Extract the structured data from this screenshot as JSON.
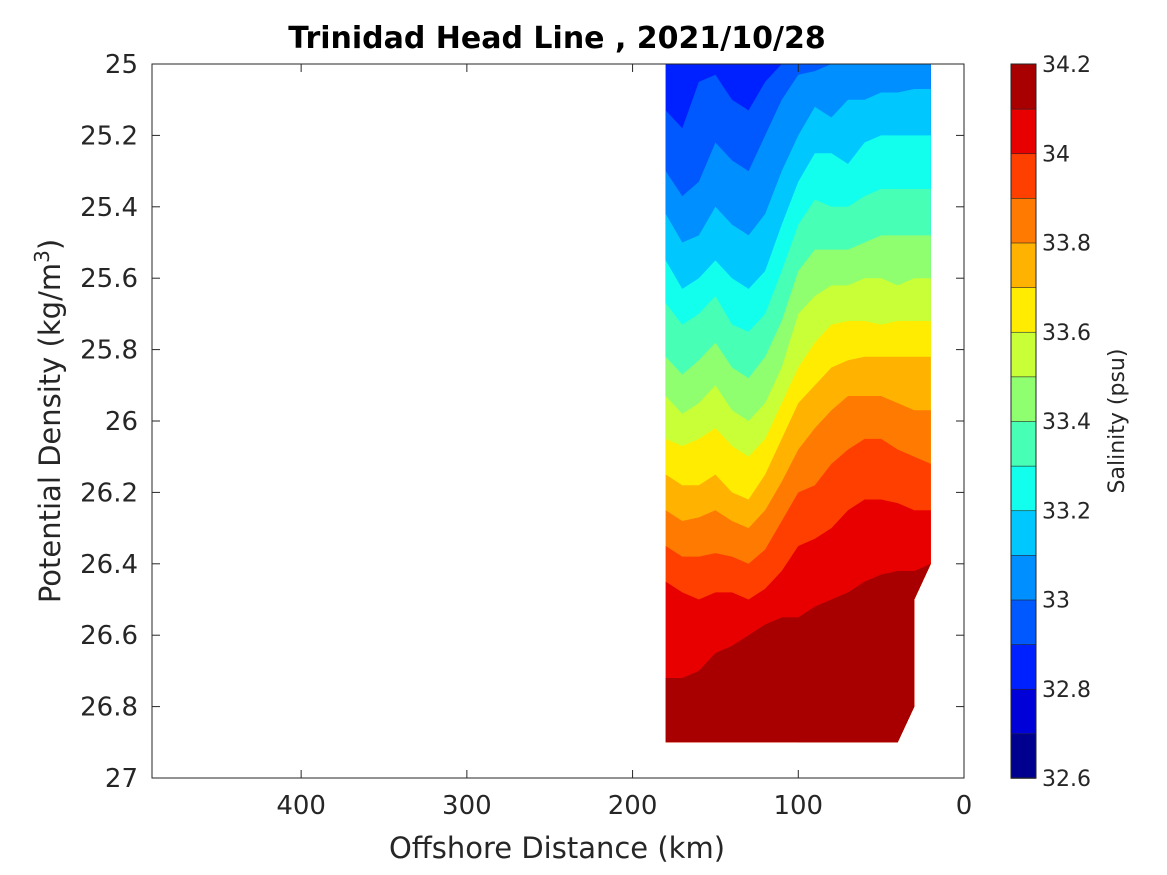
{
  "chart_data": {
    "type": "heatmap",
    "subtype": "filled-contour",
    "title": "Trinidad Head Line , 2021/10/28",
    "xlabel": "Offshore Distance (km)",
    "ylabel": {
      "base": "Potential Density (kg/m",
      "sup": "3",
      "close": ")"
    },
    "xlim": [
      490,
      0
    ],
    "ylim": [
      25,
      27
    ],
    "x_reversed": true,
    "y_reversed": true,
    "xticks": [
      400,
      300,
      200,
      100,
      0
    ],
    "yticks": [
      25,
      25.2,
      25.4,
      25.6,
      25.8,
      26,
      26.2,
      26.4,
      26.6,
      26.8,
      27
    ],
    "grid": false,
    "colorbar": {
      "label": "Salinity (psu)",
      "range": [
        32.6,
        34.2
      ],
      "ticks": [
        "34.2",
        "34",
        "33.8",
        "33.6",
        "33.4",
        "33.2",
        "33",
        "32.8",
        "32.6"
      ],
      "levels": [
        32.6,
        32.7,
        32.8,
        32.9,
        33.0,
        33.1,
        33.2,
        33.3,
        33.4,
        33.5,
        33.6,
        33.7,
        33.8,
        33.9,
        34.0,
        34.1,
        34.2
      ],
      "colors": [
        "#00008f",
        "#0000d8",
        "#0021ff",
        "#0058ff",
        "#008fff",
        "#00c8ff",
        "#12ffed",
        "#48ffb6",
        "#8fff6f",
        "#c8ff37",
        "#ffec00",
        "#ffb300",
        "#ff7a00",
        "#ff3f00",
        "#e80000",
        "#a80000"
      ]
    },
    "x_stations_km": [
      180,
      170,
      160,
      150,
      140,
      130,
      120,
      110,
      100,
      90,
      80,
      70,
      60,
      50,
      40,
      30,
      20
    ],
    "contours": [
      {
        "level": 32.8,
        "x": [
          180,
          170,
          160,
          150,
          140,
          130,
          120,
          110
        ],
        "y": [
          25.0,
          25.0,
          25.0,
          25.0,
          25.0,
          25.0,
          25.0,
          25.0
        ]
      },
      {
        "level": 32.9,
        "x": [
          180,
          170,
          160,
          150,
          140,
          130,
          120,
          110,
          100
        ],
        "y": [
          25.13,
          25.18,
          25.05,
          25.03,
          25.1,
          25.13,
          25.05,
          25.0,
          25.0
        ]
      },
      {
        "level": 33.0,
        "x": [
          180,
          170,
          160,
          150,
          140,
          130,
          120,
          110,
          100,
          90,
          80,
          70,
          60,
          50,
          40,
          30,
          20
        ],
        "y": [
          25.3,
          25.37,
          25.33,
          25.22,
          25.27,
          25.3,
          25.2,
          25.1,
          25.03,
          25.02,
          25.0,
          25.0,
          25.0,
          25.0,
          25.0,
          25.0,
          25.0
        ]
      },
      {
        "level": 33.1,
        "x": [
          180,
          170,
          160,
          150,
          140,
          130,
          120,
          110,
          100,
          90,
          80,
          70,
          60,
          50,
          40,
          30,
          20
        ],
        "y": [
          25.42,
          25.5,
          25.48,
          25.4,
          25.45,
          25.48,
          25.42,
          25.3,
          25.2,
          25.12,
          25.15,
          25.1,
          25.1,
          25.08,
          25.08,
          25.07,
          25.07
        ]
      },
      {
        "level": 33.2,
        "x": [
          180,
          170,
          160,
          150,
          140,
          130,
          120,
          110,
          100,
          90,
          80,
          70,
          60,
          50,
          40,
          30,
          20
        ],
        "y": [
          25.55,
          25.63,
          25.6,
          25.55,
          25.6,
          25.63,
          25.58,
          25.45,
          25.33,
          25.25,
          25.25,
          25.28,
          25.22,
          25.2,
          25.2,
          25.2,
          25.2
        ]
      },
      {
        "level": 33.3,
        "x": [
          180,
          170,
          160,
          150,
          140,
          130,
          120,
          110,
          100,
          90,
          80,
          70,
          60,
          50,
          40,
          30,
          20
        ],
        "y": [
          25.67,
          25.73,
          25.7,
          25.65,
          25.73,
          25.75,
          25.7,
          25.58,
          25.45,
          25.38,
          25.4,
          25.4,
          25.37,
          25.35,
          25.35,
          25.35,
          25.35
        ]
      },
      {
        "level": 33.4,
        "x": [
          180,
          170,
          160,
          150,
          140,
          130,
          120,
          110,
          100,
          90,
          80,
          70,
          60,
          50,
          40,
          30,
          20
        ],
        "y": [
          25.82,
          25.87,
          25.83,
          25.78,
          25.85,
          25.88,
          25.82,
          25.72,
          25.58,
          25.52,
          25.52,
          25.52,
          25.5,
          25.48,
          25.48,
          25.48,
          25.48
        ]
      },
      {
        "level": 33.5,
        "x": [
          180,
          170,
          160,
          150,
          140,
          130,
          120,
          110,
          100,
          90,
          80,
          70,
          60,
          50,
          40,
          30,
          20
        ],
        "y": [
          25.93,
          25.98,
          25.95,
          25.9,
          25.97,
          26.0,
          25.95,
          25.85,
          25.7,
          25.65,
          25.62,
          25.62,
          25.6,
          25.6,
          25.62,
          25.6,
          25.6
        ]
      },
      {
        "level": 33.6,
        "x": [
          180,
          170,
          160,
          150,
          140,
          130,
          120,
          110,
          100,
          90,
          80,
          70,
          60,
          50,
          40,
          30,
          20
        ],
        "y": [
          26.05,
          26.07,
          26.05,
          26.02,
          26.07,
          26.1,
          26.05,
          25.95,
          25.85,
          25.78,
          25.73,
          25.72,
          25.72,
          25.73,
          25.72,
          25.72,
          25.72
        ]
      },
      {
        "level": 33.7,
        "x": [
          180,
          170,
          160,
          150,
          140,
          130,
          120,
          110,
          100,
          90,
          80,
          70,
          60,
          50,
          40,
          30,
          20
        ],
        "y": [
          26.15,
          26.18,
          26.18,
          26.15,
          26.2,
          26.22,
          26.15,
          26.05,
          25.95,
          25.9,
          25.85,
          25.83,
          25.82,
          25.82,
          25.82,
          25.82,
          25.82
        ]
      },
      {
        "level": 33.8,
        "x": [
          180,
          170,
          160,
          150,
          140,
          130,
          120,
          110,
          100,
          90,
          80,
          70,
          60,
          50,
          40,
          30,
          20
        ],
        "y": [
          26.25,
          26.28,
          26.27,
          26.25,
          26.28,
          26.3,
          26.25,
          26.17,
          26.08,
          26.02,
          25.97,
          25.93,
          25.93,
          25.93,
          25.95,
          25.97,
          25.97
        ]
      },
      {
        "level": 33.9,
        "x": [
          180,
          170,
          160,
          150,
          140,
          130,
          120,
          110,
          100,
          90,
          80,
          70,
          60,
          50,
          40,
          30,
          20
        ],
        "y": [
          26.35,
          26.38,
          26.38,
          26.37,
          26.38,
          26.4,
          26.36,
          26.28,
          26.2,
          26.18,
          26.12,
          26.08,
          26.05,
          26.05,
          26.08,
          26.1,
          26.12
        ]
      },
      {
        "level": 34.0,
        "x": [
          180,
          170,
          160,
          150,
          140,
          130,
          120,
          110,
          100,
          90,
          80,
          70,
          60,
          50,
          40,
          30,
          20
        ],
        "y": [
          26.45,
          26.48,
          26.5,
          26.48,
          26.48,
          26.5,
          26.47,
          26.42,
          26.35,
          26.33,
          26.3,
          26.25,
          26.22,
          26.22,
          26.23,
          26.25,
          26.25
        ]
      },
      {
        "level": 34.1,
        "x": [
          180,
          170,
          160,
          150,
          140,
          130,
          120,
          110,
          100,
          90,
          80,
          70,
          60,
          50,
          40,
          30,
          20
        ],
        "y": [
          26.72,
          26.72,
          26.7,
          26.65,
          26.63,
          26.6,
          26.57,
          26.55,
          26.55,
          26.52,
          26.5,
          26.48,
          26.45,
          26.43,
          26.42,
          26.42,
          26.4
        ]
      },
      {
        "level": 34.2,
        "x": [
          100,
          90,
          80,
          70,
          60,
          50,
          40,
          30
        ],
        "y": [
          26.9,
          26.82,
          26.8,
          26.78,
          26.77,
          26.75,
          26.73,
          26.8
        ]
      }
    ],
    "data_extent": {
      "x_offshore_km": 180,
      "y_top": 25,
      "y_bottom": 26.9,
      "onshore_boundary": [
        {
          "x": 20,
          "y": 25.0
        },
        {
          "x": 20,
          "y": 26.4
        },
        {
          "x": 30,
          "y": 26.5
        },
        {
          "x": 30,
          "y": 26.8
        },
        {
          "x": 40,
          "y": 26.9
        }
      ]
    }
  }
}
